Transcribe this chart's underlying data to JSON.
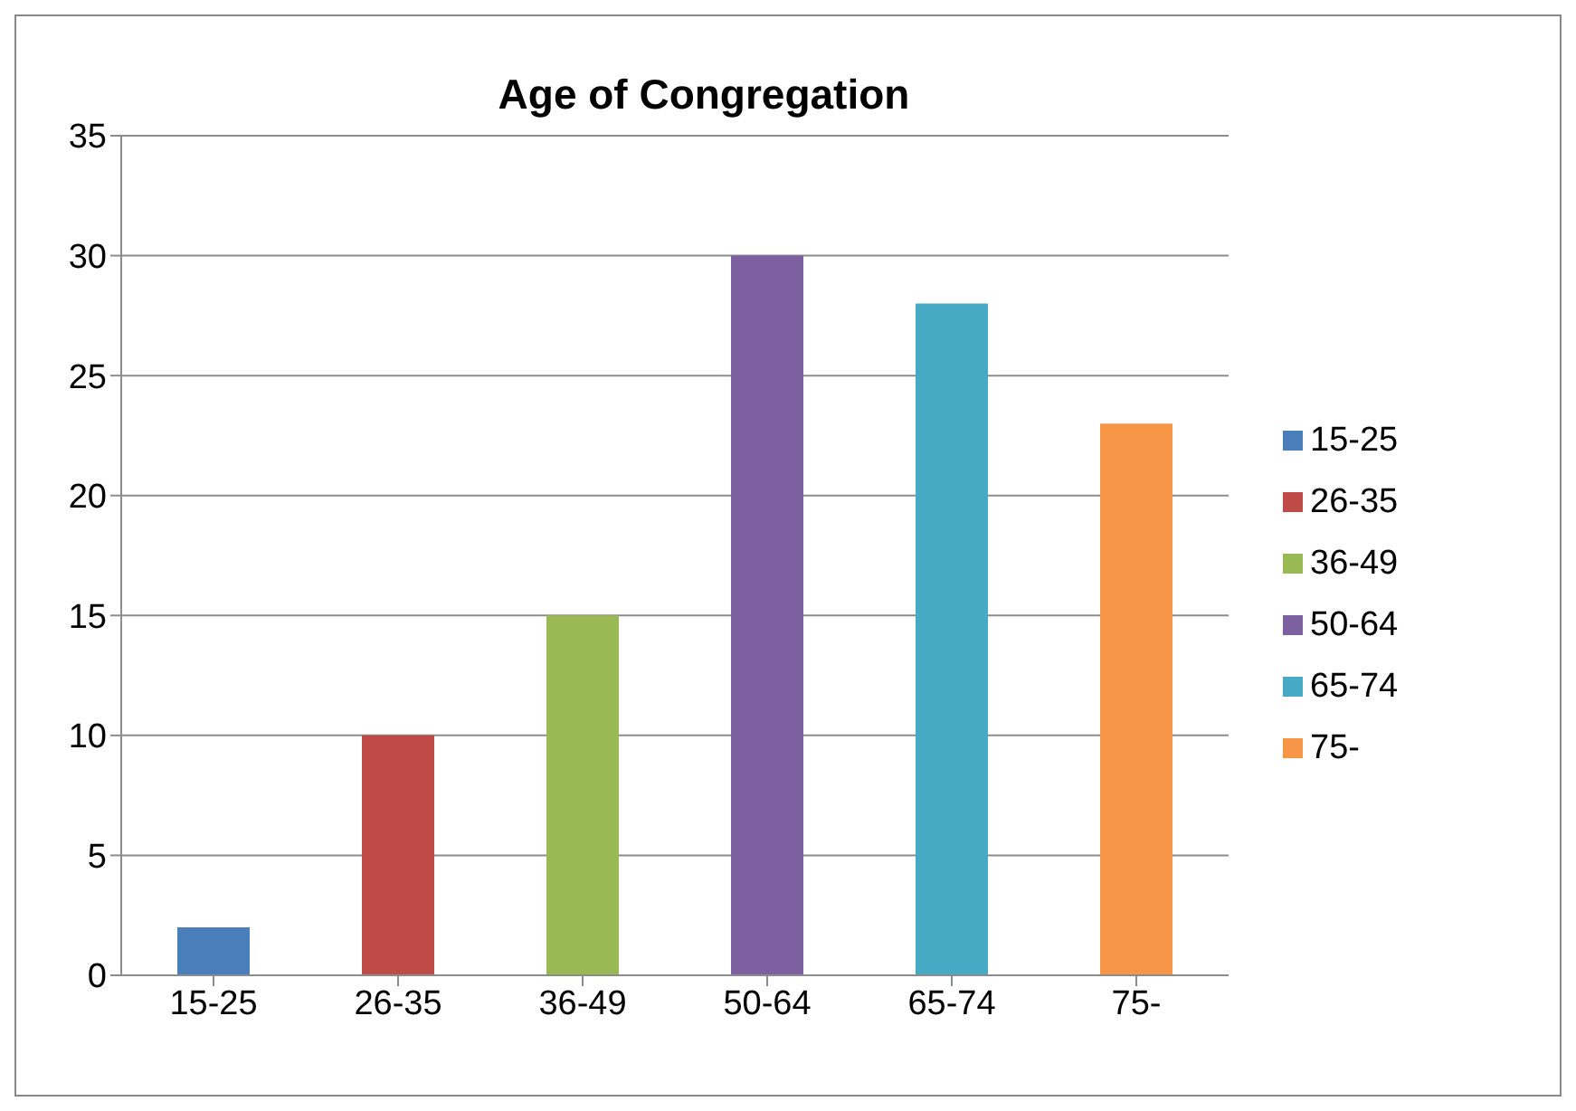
{
  "chart_data": {
    "type": "bar",
    "title": "Age of Congregation",
    "categories": [
      "15-25",
      "26-35",
      "36-49",
      "50-64",
      "65-74",
      "75-"
    ],
    "series": [
      {
        "name": "15-25",
        "color": "#4a7ebb",
        "values": [
          2,
          null,
          null,
          null,
          null,
          null
        ]
      },
      {
        "name": "26-35",
        "color": "#be4b48",
        "values": [
          null,
          10,
          null,
          null,
          null,
          null
        ]
      },
      {
        "name": "36-49",
        "color": "#98b954",
        "values": [
          null,
          null,
          15,
          null,
          null,
          null
        ]
      },
      {
        "name": "50-64",
        "color": "#7d60a0",
        "values": [
          null,
          null,
          null,
          30,
          null,
          null
        ]
      },
      {
        "name": "65-74",
        "color": "#46aac5",
        "values": [
          null,
          null,
          null,
          null,
          28,
          null
        ]
      },
      {
        "name": "75-",
        "color": "#f79646",
        "values": [
          null,
          null,
          null,
          null,
          null,
          23
        ]
      }
    ],
    "stacked": true,
    "ylim": [
      0,
      35
    ],
    "yticks": [
      0,
      5,
      10,
      15,
      20,
      25,
      30,
      35
    ],
    "grid": "y",
    "legend": "right"
  }
}
